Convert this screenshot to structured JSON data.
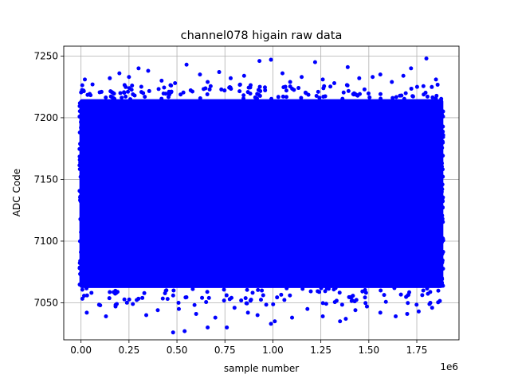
{
  "chart_data": {
    "type": "scatter",
    "title": "channel078 higain raw data",
    "xlabel": "sample number",
    "ylabel": "ADC Code",
    "x_offset_label": "1e6",
    "xlim": [
      -90000,
      1970000
    ],
    "ylim": [
      7020,
      7258
    ],
    "x_ticks": [
      0,
      250000,
      500000,
      750000,
      1000000,
      1250000,
      1500000,
      1750000
    ],
    "x_tick_labels": [
      "0.00",
      "0.25",
      "0.50",
      "0.75",
      "1.00",
      "1.25",
      "1.50",
      "1.75"
    ],
    "y_ticks": [
      7050,
      7100,
      7150,
      7200,
      7250
    ],
    "y_tick_labels": [
      "7050",
      "7100",
      "7150",
      "7200",
      "7250"
    ],
    "grid": true,
    "marker_color": "#0000ff",
    "x_range": [
      0,
      1880000
    ],
    "dense_band": {
      "x": [
        0,
        1880000
      ],
      "y": [
        7062,
        7215
      ]
    },
    "outliers": [
      {
        "x": 20000,
        "y": 7231
      },
      {
        "x": 60000,
        "y": 7227
      },
      {
        "x": 150000,
        "y": 7232
      },
      {
        "x": 200000,
        "y": 7236
      },
      {
        "x": 250000,
        "y": 7233
      },
      {
        "x": 300000,
        "y": 7240
      },
      {
        "x": 350000,
        "y": 7238
      },
      {
        "x": 420000,
        "y": 7230
      },
      {
        "x": 490000,
        "y": 7228
      },
      {
        "x": 550000,
        "y": 7243
      },
      {
        "x": 620000,
        "y": 7235
      },
      {
        "x": 660000,
        "y": 7229
      },
      {
        "x": 720000,
        "y": 7237
      },
      {
        "x": 780000,
        "y": 7232
      },
      {
        "x": 850000,
        "y": 7234
      },
      {
        "x": 930000,
        "y": 7246
      },
      {
        "x": 990000,
        "y": 7247
      },
      {
        "x": 1050000,
        "y": 7236
      },
      {
        "x": 1090000,
        "y": 7229
      },
      {
        "x": 1150000,
        "y": 7233
      },
      {
        "x": 1220000,
        "y": 7245
      },
      {
        "x": 1260000,
        "y": 7231
      },
      {
        "x": 1320000,
        "y": 7228
      },
      {
        "x": 1390000,
        "y": 7241
      },
      {
        "x": 1450000,
        "y": 7232
      },
      {
        "x": 1520000,
        "y": 7233
      },
      {
        "x": 1560000,
        "y": 7235
      },
      {
        "x": 1620000,
        "y": 7229
      },
      {
        "x": 1680000,
        "y": 7234
      },
      {
        "x": 1720000,
        "y": 7240
      },
      {
        "x": 1800000,
        "y": 7248
      },
      {
        "x": 1850000,
        "y": 7231
      },
      {
        "x": 30000,
        "y": 7042
      },
      {
        "x": 100000,
        "y": 7048
      },
      {
        "x": 130000,
        "y": 7039
      },
      {
        "x": 180000,
        "y": 7047
      },
      {
        "x": 270000,
        "y": 7049
      },
      {
        "x": 340000,
        "y": 7040
      },
      {
        "x": 400000,
        "y": 7044
      },
      {
        "x": 480000,
        "y": 7026
      },
      {
        "x": 510000,
        "y": 7045
      },
      {
        "x": 540000,
        "y": 7027
      },
      {
        "x": 600000,
        "y": 7041
      },
      {
        "x": 660000,
        "y": 7030
      },
      {
        "x": 700000,
        "y": 7038
      },
      {
        "x": 760000,
        "y": 7030
      },
      {
        "x": 800000,
        "y": 7046
      },
      {
        "x": 870000,
        "y": 7042
      },
      {
        "x": 920000,
        "y": 7040
      },
      {
        "x": 990000,
        "y": 7033
      },
      {
        "x": 1010000,
        "y": 7035
      },
      {
        "x": 1100000,
        "y": 7038
      },
      {
        "x": 1180000,
        "y": 7045
      },
      {
        "x": 1260000,
        "y": 7039
      },
      {
        "x": 1350000,
        "y": 7035
      },
      {
        "x": 1380000,
        "y": 7037
      },
      {
        "x": 1430000,
        "y": 7044
      },
      {
        "x": 1490000,
        "y": 7047
      },
      {
        "x": 1560000,
        "y": 7042
      },
      {
        "x": 1640000,
        "y": 7039
      },
      {
        "x": 1700000,
        "y": 7041
      },
      {
        "x": 1760000,
        "y": 7043
      },
      {
        "x": 1830000,
        "y": 7046
      }
    ]
  }
}
